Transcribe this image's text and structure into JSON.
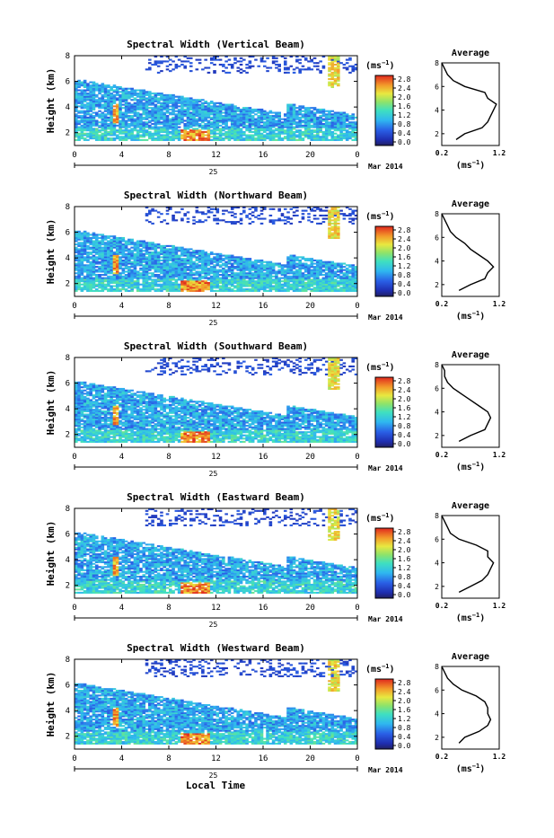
{
  "figure": {
    "xlabel": "Local Time",
    "date_label": "Mar 2014",
    "day_label": "25",
    "colorbar_unit": "(ms",
    "colorbar_unit_exp": "−1",
    "colorbar_unit_close": ")",
    "profile_title": "Average",
    "profile_unit": "(ms",
    "profile_unit_exp": "−1",
    "profile_unit_close": ")",
    "ylabel": "Height (km)"
  },
  "chart_data": [
    {
      "type": "heatmap",
      "title": "Spectral Width (Vertical Beam)",
      "xlabel": "Local Time",
      "ylabel": "Height (km)",
      "x_ticks": [
        "0",
        "4",
        "8",
        "12",
        "16",
        "20",
        "0"
      ],
      "y_ticks": [
        "2",
        "4",
        "6",
        "8"
      ],
      "xlim": [
        0,
        24
      ],
      "ylim": [
        1,
        8
      ],
      "colorbar": {
        "ticks": [
          "2.8",
          "2.4",
          "2.0",
          "1.6",
          "1.2",
          "0.8",
          "0.4",
          "0.0"
        ],
        "range": [
          0,
          2.8
        ]
      },
      "profile": {
        "title": "Average",
        "xticks": [
          "0.2",
          "1.2"
        ],
        "yticks": [
          "2",
          "4",
          "6",
          "8"
        ],
        "heights": [
          1.5,
          2.0,
          2.5,
          3.0,
          3.5,
          4.0,
          4.5,
          5.0,
          5.5,
          6.0,
          6.5,
          7.0,
          7.5,
          8.0
        ],
        "values": [
          0.45,
          0.6,
          0.9,
          1.0,
          1.05,
          1.1,
          1.15,
          1.0,
          0.95,
          0.6,
          0.4,
          0.3,
          0.25,
          0.2
        ]
      }
    },
    {
      "type": "heatmap",
      "title": "Spectral Width (Northward Beam)",
      "xlabel": "Local Time",
      "ylabel": "Height (km)",
      "x_ticks": [
        "0",
        "4",
        "8",
        "12",
        "16",
        "20",
        "0"
      ],
      "y_ticks": [
        "2",
        "4",
        "6",
        "8"
      ],
      "xlim": [
        0,
        24
      ],
      "ylim": [
        1,
        8
      ],
      "colorbar": {
        "ticks": [
          "2.8",
          "2.4",
          "2.0",
          "1.6",
          "1.2",
          "0.8",
          "0.4",
          "0.0"
        ],
        "range": [
          0,
          2.8
        ]
      },
      "profile": {
        "title": "Average",
        "xticks": [
          "0.2",
          "1.2"
        ],
        "yticks": [
          "2",
          "4",
          "6",
          "8"
        ],
        "heights": [
          1.5,
          2.0,
          2.5,
          3.0,
          3.5,
          4.0,
          4.5,
          5.0,
          5.5,
          6.0,
          6.5,
          7.0,
          7.5,
          8.0
        ],
        "values": [
          0.5,
          0.7,
          0.95,
          1.0,
          1.1,
          1.0,
          0.85,
          0.7,
          0.6,
          0.45,
          0.35,
          0.3,
          0.25,
          0.2
        ]
      }
    },
    {
      "type": "heatmap",
      "title": "Spectral Width (Southward Beam)",
      "xlabel": "Local Time",
      "ylabel": "Height (km)",
      "x_ticks": [
        "0",
        "4",
        "8",
        "12",
        "16",
        "20",
        "0"
      ],
      "y_ticks": [
        "2",
        "4",
        "6",
        "8"
      ],
      "xlim": [
        0,
        24
      ],
      "ylim": [
        1,
        8
      ],
      "colorbar": {
        "ticks": [
          "2.8",
          "2.4",
          "2.0",
          "1.6",
          "1.2",
          "0.8",
          "0.4",
          "0.0"
        ],
        "range": [
          0,
          2.8
        ]
      },
      "profile": {
        "title": "Average",
        "xticks": [
          "0.2",
          "1.2"
        ],
        "yticks": [
          "2",
          "4",
          "6",
          "8"
        ],
        "heights": [
          1.5,
          2.0,
          2.5,
          3.0,
          3.5,
          4.0,
          4.5,
          5.0,
          5.5,
          6.0,
          6.5,
          7.0,
          7.5,
          8.0
        ],
        "values": [
          0.5,
          0.7,
          0.95,
          1.0,
          1.05,
          1.0,
          0.85,
          0.7,
          0.55,
          0.4,
          0.3,
          0.25,
          0.25,
          0.2
        ]
      }
    },
    {
      "type": "heatmap",
      "title": "Spectral Width (Eastward Beam)",
      "xlabel": "Local Time",
      "ylabel": "Height (km)",
      "x_ticks": [
        "0",
        "4",
        "8",
        "12",
        "16",
        "20",
        "0"
      ],
      "y_ticks": [
        "2",
        "4",
        "6",
        "8"
      ],
      "xlim": [
        0,
        24
      ],
      "ylim": [
        1,
        8
      ],
      "colorbar": {
        "ticks": [
          "2.8",
          "2.4",
          "2.0",
          "1.6",
          "1.2",
          "0.8",
          "0.4",
          "0.0"
        ],
        "range": [
          0,
          2.8
        ]
      },
      "profile": {
        "title": "Average",
        "xticks": [
          "0.2",
          "1.2"
        ],
        "yticks": [
          "2",
          "4",
          "6",
          "8"
        ],
        "heights": [
          1.5,
          2.0,
          2.5,
          3.0,
          3.5,
          4.0,
          4.5,
          5.0,
          5.5,
          6.0,
          6.5,
          7.0,
          7.5,
          8.0
        ],
        "values": [
          0.5,
          0.7,
          0.9,
          1.0,
          1.05,
          1.1,
          1.0,
          1.0,
          0.8,
          0.5,
          0.35,
          0.3,
          0.25,
          0.2
        ]
      }
    },
    {
      "type": "heatmap",
      "title": "Spectral Width (Westward Beam)",
      "xlabel": "Local Time",
      "ylabel": "Height (km)",
      "x_ticks": [
        "0",
        "4",
        "8",
        "12",
        "16",
        "20",
        "0"
      ],
      "y_ticks": [
        "2",
        "4",
        "6",
        "8"
      ],
      "xlim": [
        0,
        24
      ],
      "ylim": [
        1,
        8
      ],
      "colorbar": {
        "ticks": [
          "2.8",
          "2.4",
          "2.0",
          "1.6",
          "1.2",
          "0.8",
          "0.4",
          "0.0"
        ],
        "range": [
          0,
          2.8
        ]
      },
      "profile": {
        "title": "Average",
        "xticks": [
          "0.2",
          "1.2"
        ],
        "yticks": [
          "2",
          "4",
          "6",
          "8"
        ],
        "heights": [
          1.5,
          2.0,
          2.5,
          3.0,
          3.5,
          4.0,
          4.5,
          5.0,
          5.5,
          6.0,
          6.5,
          7.0,
          7.5,
          8.0
        ],
        "values": [
          0.5,
          0.6,
          0.85,
          1.0,
          1.05,
          1.0,
          1.0,
          0.95,
          0.8,
          0.55,
          0.4,
          0.3,
          0.25,
          0.2
        ]
      }
    }
  ]
}
